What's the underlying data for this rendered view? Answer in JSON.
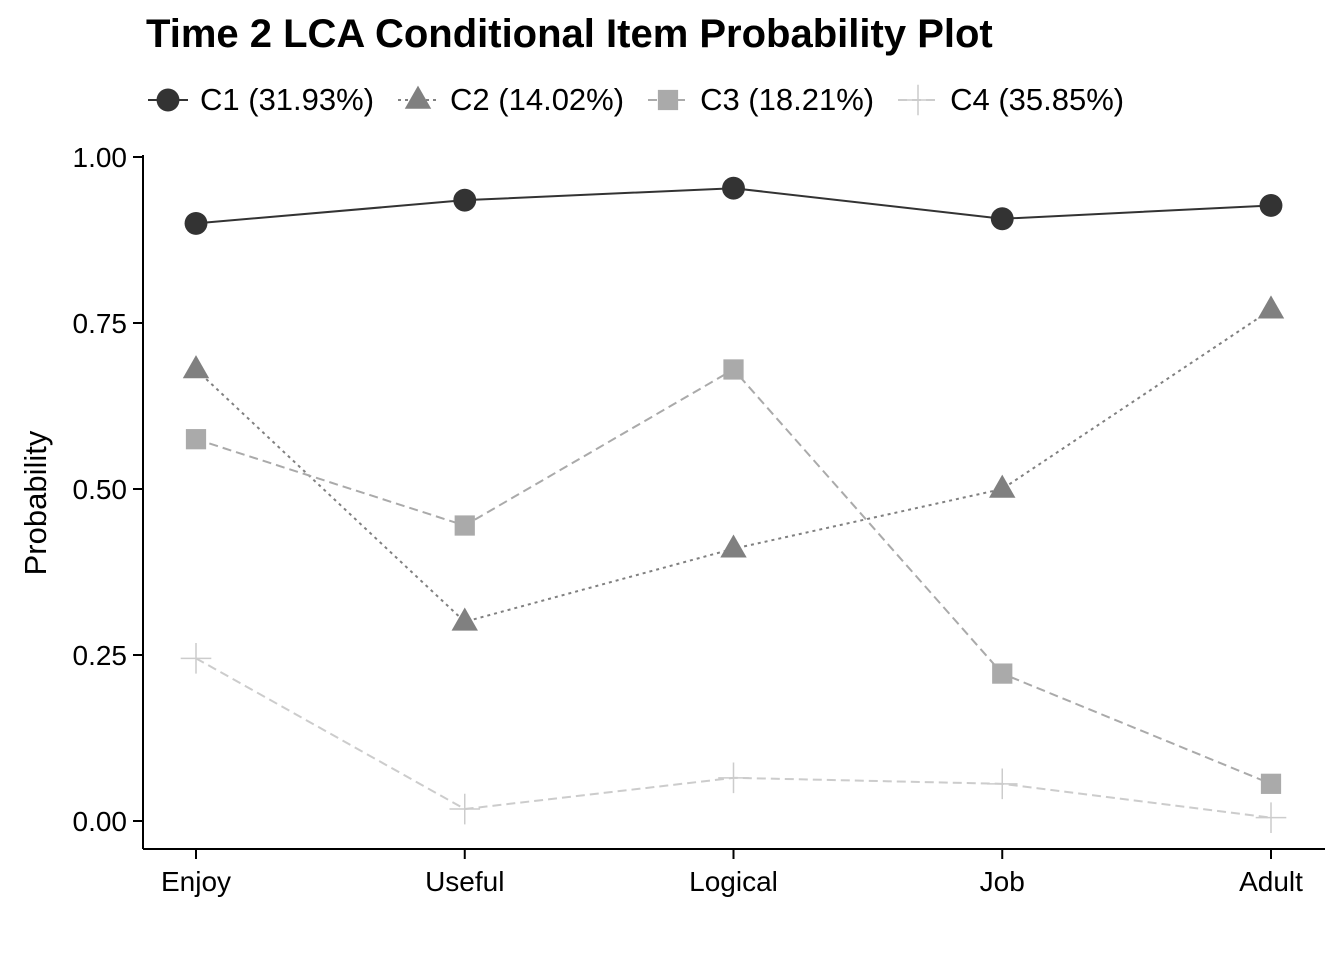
{
  "chart_data": {
    "type": "line",
    "title": "Time 2 LCA Conditional Item Probability Plot",
    "xlabel": "",
    "ylabel": "Probability",
    "categories": [
      "Enjoy",
      "Useful",
      "Logical",
      "Job",
      "Adult"
    ],
    "ylim": [
      0,
      1
    ],
    "yticks": [
      "0.00",
      "0.25",
      "0.50",
      "0.75",
      "1.00"
    ],
    "ytick_values": [
      0,
      0.25,
      0.5,
      0.75,
      1.0
    ],
    "grid": false,
    "legend_position": "top-left",
    "series": [
      {
        "name": "C1 (31.93%)",
        "values": [
          0.9,
          0.935,
          0.953,
          0.907,
          0.927
        ],
        "color": "#333333",
        "marker": "circle",
        "line": "solid"
      },
      {
        "name": "C2 (14.02%)",
        "values": [
          0.68,
          0.3,
          0.41,
          0.5,
          0.77
        ],
        "color": "#808080",
        "marker": "triangle",
        "line": "dotted"
      },
      {
        "name": "C3 (18.21%)",
        "values": [
          0.575,
          0.445,
          0.68,
          0.222,
          0.056
        ],
        "color": "#aaaaaa",
        "marker": "square",
        "line": "dashed"
      },
      {
        "name": "C4 (35.85%)",
        "values": [
          0.245,
          0.018,
          0.065,
          0.056,
          0.005
        ],
        "color": "#cccccc",
        "marker": "plus",
        "line": "dashed"
      }
    ]
  }
}
